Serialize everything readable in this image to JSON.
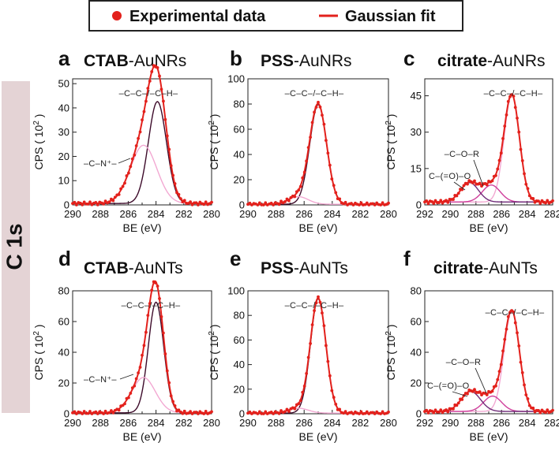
{
  "legend": {
    "experimental_label": "Experimental data",
    "fit_label": "Gaussian fit"
  },
  "side_label": "C 1s",
  "colors": {
    "data": "#e3211c",
    "fit": "#e3211c",
    "main_peak": "#3d0b2a",
    "pink": "#f2a8d2",
    "magenta": "#cf3f9c",
    "purple": "#6e2a78",
    "side_band": "#e4d3d5"
  },
  "chart_data": [
    {
      "type": "line",
      "panel": "a",
      "title_bold": "CTAB",
      "title_rest": "-AuNRs",
      "xlabel": "BE (eV)",
      "ylabel_text": "CPS ( 10",
      "ylabel_sup": "2",
      "ylabel_end": ")",
      "xlim": [
        290,
        280
      ],
      "ylim": [
        0,
        52
      ],
      "xticks": [
        290,
        288,
        286,
        284,
        282,
        280
      ],
      "yticks": [
        0,
        10,
        20,
        30,
        40,
        50
      ],
      "annotations": [
        "–C–C–/–C–H–",
        "–C–N⁺–"
      ],
      "components": [
        {
          "name": "–C–C–/–C–H–",
          "center": 283.9,
          "amp": 42,
          "sigma": 0.65,
          "color": "#3d0b2a"
        },
        {
          "name": "–C–N⁺–",
          "center": 284.9,
          "amp": 24,
          "sigma": 0.95,
          "color": "#f2a8d2"
        }
      ],
      "baseline": 0.6
    },
    {
      "type": "line",
      "panel": "b",
      "title_bold": "PSS",
      "title_rest": "-AuNRs",
      "xlabel": "BE (eV)",
      "ylabel_text": "CPS ( 10",
      "ylabel_sup": "2",
      "ylabel_end": ")",
      "xlim": [
        290,
        280
      ],
      "ylim": [
        0,
        100
      ],
      "xticks": [
        290,
        288,
        286,
        284,
        282,
        280
      ],
      "yticks": [
        0,
        20,
        40,
        60,
        80,
        100
      ],
      "annotations": [
        "–C–C–/–C–H–"
      ],
      "components": [
        {
          "name": "–C–C–/–C–H–",
          "center": 285.0,
          "amp": 79,
          "sigma": 0.6,
          "color": "#3d0b2a"
        },
        {
          "name": "minor",
          "center": 286.4,
          "amp": 6,
          "sigma": 0.7,
          "color": "#f2a8d2"
        }
      ],
      "baseline": 0.5
    },
    {
      "type": "line",
      "panel": "c",
      "title_bold": "citrate",
      "title_rest": "-AuNRs",
      "xlabel": "BE (eV)",
      "ylabel_text": "CPS ( 10",
      "ylabel_sup": "2",
      "ylabel_end": ")",
      "xlim": [
        292,
        282
      ],
      "ylim": [
        0,
        52
      ],
      "xticks": [
        292,
        290,
        288,
        286,
        284,
        282
      ],
      "yticks": [
        0,
        15,
        30,
        45
      ],
      "annotations": [
        "–C–C–/–C–H–",
        "–C–O–R",
        "C–(=O)–O"
      ],
      "components": [
        {
          "name": "–C–C–/–C–H–",
          "center": 285.2,
          "amp": 44,
          "sigma": 0.6,
          "color": "#f2a8d2"
        },
        {
          "name": "–C–O–R",
          "center": 286.8,
          "amp": 7,
          "sigma": 0.7,
          "color": "#cf3f9c"
        },
        {
          "name": "C–(=O)–O",
          "center": 288.5,
          "amp": 8,
          "sigma": 0.7,
          "color": "#6e2a78"
        }
      ],
      "baseline": 1.2
    },
    {
      "type": "line",
      "panel": "d",
      "title_bold": "CTAB",
      "title_rest": "-AuNTs",
      "xlabel": "BE (eV)",
      "ylabel_text": "CPS ( 10",
      "ylabel_sup": "2",
      "ylabel_end": ")",
      "xlim": [
        290,
        280
      ],
      "ylim": [
        0,
        80
      ],
      "xticks": [
        290,
        288,
        286,
        284,
        282,
        280
      ],
      "yticks": [
        0,
        20,
        40,
        60,
        80
      ],
      "annotations": [
        "–C–C–/–C–H–",
        "–C–N⁺–"
      ],
      "components": [
        {
          "name": "–C–C–/–C–H–",
          "center": 284.0,
          "amp": 72,
          "sigma": 0.55,
          "color": "#3d0b2a"
        },
        {
          "name": "–C–N⁺–",
          "center": 284.9,
          "amp": 23,
          "sigma": 0.85,
          "color": "#f2a8d2"
        }
      ],
      "baseline": 0.6
    },
    {
      "type": "line",
      "panel": "e",
      "title_bold": "PSS",
      "title_rest": "-AuNTs",
      "xlabel": "BE (eV)",
      "ylabel_text": "CPS ( 10",
      "ylabel_sup": "2",
      "ylabel_end": ")",
      "xlim": [
        290,
        280
      ],
      "ylim": [
        0,
        100
      ],
      "xticks": [
        290,
        288,
        286,
        284,
        282,
        280
      ],
      "yticks": [
        0,
        20,
        40,
        60,
        80,
        100
      ],
      "annotations": [
        "–C–C–/–C–H–"
      ],
      "components": [
        {
          "name": "–C–C–/–C–H–",
          "center": 285.0,
          "amp": 93,
          "sigma": 0.55,
          "color": "#3d0b2a"
        },
        {
          "name": "minor",
          "center": 286.4,
          "amp": 4,
          "sigma": 0.7,
          "color": "#f2a8d2"
        }
      ],
      "baseline": 0.5
    },
    {
      "type": "line",
      "panel": "f",
      "title_bold": "citrate",
      "title_rest": "-AuNTs",
      "xlabel": "BE (eV)",
      "ylabel_text": "CPS ( 10",
      "ylabel_sup": "2",
      "ylabel_end": ")",
      "xlim": [
        292,
        282
      ],
      "ylim": [
        0,
        80
      ],
      "xticks": [
        292,
        290,
        288,
        286,
        284,
        282
      ],
      "yticks": [
        0,
        20,
        40,
        60,
        80
      ],
      "annotations": [
        "–C–C–/–C–H–",
        "–C–O–R",
        "C–(=O)–O"
      ],
      "components": [
        {
          "name": "–C–C–/–C–H–",
          "center": 285.2,
          "amp": 65,
          "sigma": 0.6,
          "color": "#f2a8d2"
        },
        {
          "name": "–C–O–R",
          "center": 286.7,
          "amp": 10,
          "sigma": 0.7,
          "color": "#cf3f9c"
        },
        {
          "name": "C–(=O)–O",
          "center": 288.4,
          "amp": 13,
          "sigma": 0.75,
          "color": "#6e2a78"
        }
      ],
      "baseline": 1.5
    }
  ]
}
